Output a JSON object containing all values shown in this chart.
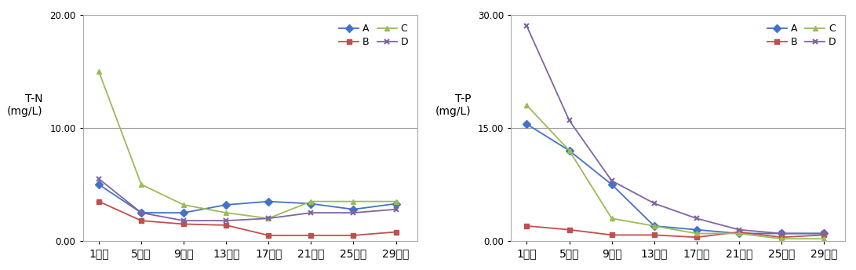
{
  "x_labels": [
    "1일차",
    "5일차",
    "9일차",
    "13일차",
    "17일차",
    "21일차",
    "25일차",
    "29일차"
  ],
  "x_positions": [
    1,
    5,
    9,
    13,
    17,
    21,
    25,
    29
  ],
  "tn": {
    "A": [
      5.0,
      2.5,
      2.5,
      3.2,
      3.5,
      3.3,
      2.8,
      3.3
    ],
    "B": [
      3.5,
      1.8,
      1.5,
      1.4,
      0.5,
      0.5,
      0.5,
      0.8
    ],
    "C": [
      15.0,
      5.0,
      3.2,
      2.5,
      2.0,
      3.5,
      3.5,
      3.5
    ],
    "D": [
      5.5,
      2.5,
      1.8,
      1.8,
      2.0,
      2.5,
      2.5,
      2.8
    ]
  },
  "tp": {
    "A": [
      15.5,
      12.0,
      7.5,
      2.0,
      1.5,
      1.0,
      1.0,
      1.0
    ],
    "B": [
      2.0,
      1.5,
      0.8,
      0.8,
      0.5,
      1.2,
      0.5,
      0.8
    ],
    "C": [
      18.0,
      12.0,
      3.0,
      2.0,
      1.0,
      1.0,
      0.3,
      0.3
    ],
    "D": [
      28.5,
      16.0,
      8.0,
      5.0,
      3.0,
      1.5,
      1.0,
      1.0
    ]
  },
  "colors": {
    "A": "#4472C4",
    "B": "#C0504D",
    "C": "#9BBB59",
    "D": "#8064A2"
  },
  "markers": {
    "A": "D",
    "B": "s",
    "C": "^",
    "D": "x"
  },
  "tn_ylabel": "T-N\n(mg/L)",
  "tp_ylabel": "T-P\n(mg/L)",
  "tn_ylim": [
    0,
    20
  ],
  "tp_ylim": [
    0,
    30
  ],
  "tn_yticks": [
    0.0,
    10.0,
    20.0
  ],
  "tp_yticks": [
    0.0,
    15.0,
    30.0
  ],
  "tn_hline": 10.0,
  "tp_hline": 15.0,
  "background_color": "#ffffff",
  "grid_color": "#999999",
  "spine_color": "#aaaaaa"
}
